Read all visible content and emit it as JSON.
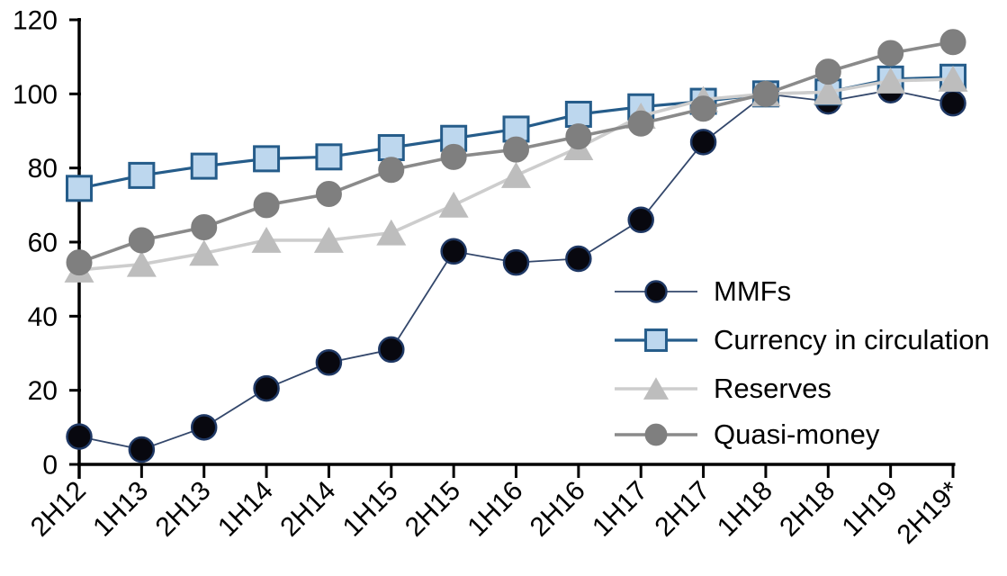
{
  "chart_data": {
    "type": "line",
    "title": "",
    "xlabel": "",
    "ylabel": "",
    "grid": false,
    "legend_position": "middle-right",
    "ylim": [
      0,
      120
    ],
    "yticks": [
      0,
      20,
      40,
      60,
      80,
      100,
      120
    ],
    "categories": [
      "2H12",
      "1H13",
      "2H13",
      "1H14",
      "2H14",
      "1H15",
      "2H15",
      "1H16",
      "2H16",
      "1H17",
      "2H17",
      "1H18",
      "2H18",
      "1H19",
      "2H19*"
    ],
    "series": [
      {
        "name": "MMFs",
        "marker": "circle",
        "marker_size": 27,
        "marker_fill": "#08080f",
        "marker_stroke": "#1f3864",
        "marker_stroke_width": 2.5,
        "line_color": "#33476b",
        "line_width": 1.8,
        "values": [
          7.5,
          4,
          10,
          20.5,
          27.5,
          31,
          57.5,
          54.5,
          55.5,
          66,
          87,
          100,
          98,
          101,
          97.5
        ]
      },
      {
        "name": "Currency in circulation",
        "marker": "square",
        "marker_size": 27,
        "marker_fill": "#bdd7ee",
        "marker_stroke": "#255c8a",
        "marker_stroke_width": 3,
        "line_color": "#255c8a",
        "line_width": 3.2,
        "values": [
          74.5,
          78,
          80.5,
          82.5,
          83,
          85.5,
          88,
          90.5,
          94.5,
          96.5,
          98,
          100,
          100.5,
          104,
          104.5
        ]
      },
      {
        "name": "Reserves",
        "marker": "triangle",
        "marker_size": 30,
        "marker_fill": "#bdbdbd",
        "marker_stroke": "#bdbdbd",
        "marker_stroke_width": 0,
        "line_color": "#cdcdcd",
        "line_width": 3.6,
        "values": [
          52.5,
          54,
          57,
          60.5,
          60.5,
          62.5,
          70,
          78,
          85.5,
          94,
          98.5,
          100,
          100.5,
          103.5,
          104
        ]
      },
      {
        "name": "Quasi-money",
        "marker": "circle",
        "marker_size": 28,
        "marker_fill": "#7f7f7f",
        "marker_stroke": "#7f7f7f",
        "marker_stroke_width": 1,
        "line_color": "#8a8a8a",
        "line_width": 3.6,
        "values": [
          54.5,
          60.5,
          64,
          70,
          73,
          79.5,
          83,
          85,
          88.5,
          92,
          96,
          100,
          106,
          111,
          114
        ]
      }
    ],
    "axis_color": "#000000",
    "tick_label_color": "#000000",
    "tick_label_size": 30
  }
}
